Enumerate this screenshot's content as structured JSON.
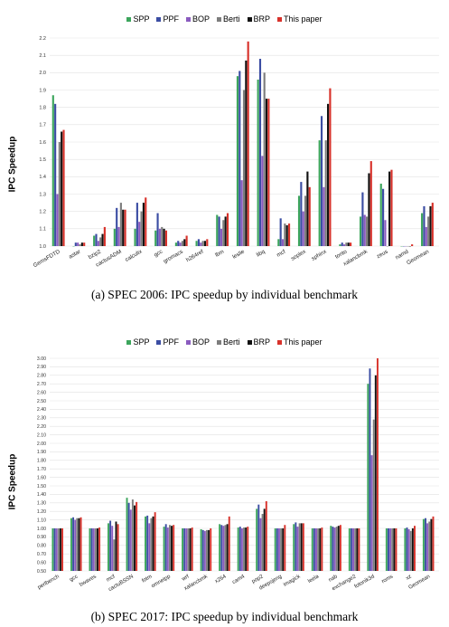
{
  "chart_data": [
    {
      "type": "bar",
      "title": "",
      "ylabel": "IPC Speedup",
      "xlabel": "",
      "ylim": [
        1.0,
        2.2
      ],
      "yticks": [
        "1.0",
        "1.1",
        "1.2",
        "1.3",
        "1.4",
        "1.5",
        "1.6",
        "1.7",
        "1.8",
        "1.9",
        "2.0",
        "2.1",
        "2.2"
      ],
      "caption": "(a) SPEC 2006: IPC speedup by individual benchmark",
      "legend_position": "top-center",
      "grid": true,
      "categories": [
        "GemsFDTD",
        "astar",
        "bzip2",
        "cactusADM",
        "calculix",
        "gcc",
        "gromacs",
        "h264ref",
        "lbm",
        "leslie",
        "libq",
        "mcf",
        "soplex",
        "sphinx",
        "tonto",
        "xalancbmk",
        "zeus",
        "namd",
        "Geomean"
      ],
      "series": [
        {
          "name": "SPP",
          "color": "#3ca55c",
          "values": [
            1.87,
            1.0,
            1.06,
            1.1,
            1.1,
            1.09,
            1.02,
            1.03,
            1.18,
            1.98,
            1.96,
            1.04,
            1.29,
            1.61,
            1.01,
            1.17,
            1.36,
            1.0,
            1.19
          ]
        },
        {
          "name": "PPF",
          "color": "#3b4da3",
          "values": [
            1.82,
            1.02,
            1.07,
            1.22,
            1.25,
            1.19,
            1.03,
            1.04,
            1.17,
            2.01,
            2.08,
            1.16,
            1.37,
            1.75,
            1.02,
            1.31,
            1.33,
            1.0,
            1.23
          ]
        },
        {
          "name": "BOP",
          "color": "#8a5bbf",
          "values": [
            1.3,
            1.02,
            1.03,
            1.11,
            1.14,
            1.1,
            1.02,
            1.02,
            1.1,
            1.38,
            1.52,
            1.04,
            1.2,
            1.34,
            1.01,
            1.18,
            1.15,
            1.0,
            1.11
          ]
        },
        {
          "name": "Berti",
          "color": "#7d7d7d",
          "values": [
            1.6,
            1.01,
            1.05,
            1.25,
            1.2,
            1.11,
            1.03,
            1.03,
            1.15,
            1.9,
            2.0,
            1.13,
            1.29,
            1.61,
            1.02,
            1.17,
            1.0,
            1.0,
            1.17
          ]
        },
        {
          "name": "BRP",
          "color": "#111111",
          "values": [
            1.66,
            1.02,
            1.07,
            1.21,
            1.25,
            1.1,
            1.04,
            1.03,
            1.17,
            2.07,
            1.85,
            1.12,
            1.43,
            1.82,
            1.02,
            1.42,
            1.43,
            1.0,
            1.23
          ]
        },
        {
          "name": "This paper",
          "color": "#d8322b",
          "values": [
            1.67,
            1.02,
            1.11,
            1.21,
            1.28,
            1.09,
            1.06,
            1.04,
            1.19,
            2.18,
            1.85,
            1.13,
            1.34,
            1.91,
            1.02,
            1.49,
            1.44,
            1.01,
            1.25
          ]
        }
      ]
    },
    {
      "type": "bar",
      "title": "",
      "ylabel": "IPC Speedup",
      "xlabel": "",
      "ylim": [
        0.5,
        3.0
      ],
      "yticks": [
        "0.50",
        "0.60",
        "0.70",
        "0.80",
        "0.90",
        "1.00",
        "1.10",
        "1.20",
        "1.30",
        "1.40",
        "1.50",
        "1.60",
        "1.70",
        "1.80",
        "1.90",
        "2.00",
        "2.10",
        "2.20",
        "2.30",
        "2.40",
        "2.50",
        "2.60",
        "2.70",
        "2.80",
        "2.90",
        "3.00"
      ],
      "caption": "(b) SPEC 2017: IPC speedup by individual benchmark",
      "legend_position": "top-center",
      "grid": true,
      "categories": [
        "perlbench",
        "gcc",
        "bwaves",
        "mcf",
        "cactuBSSN",
        "fotm",
        "omnetpp",
        "wrf",
        "xalancbmk",
        "x264",
        "cam4",
        "pop2",
        "deepsjeng",
        "imagick",
        "leela",
        "nab",
        "exchange2",
        "fotonik3d",
        "roms",
        "xz",
        "Geomean"
      ],
      "series": [
        {
          "name": "SPP",
          "color": "#3ca55c",
          "values": [
            1.0,
            1.12,
            1.0,
            1.06,
            1.36,
            1.14,
            1.02,
            1.0,
            0.99,
            1.05,
            1.01,
            1.23,
            1.0,
            1.05,
            1.0,
            1.03,
            1.0,
            2.7,
            1.0,
            1.0,
            1.11
          ]
        },
        {
          "name": "PPF",
          "color": "#3b4da3",
          "values": [
            1.0,
            1.13,
            1.0,
            1.09,
            1.3,
            1.15,
            1.05,
            1.0,
            0.98,
            1.04,
            1.02,
            1.28,
            1.0,
            1.07,
            1.0,
            1.02,
            1.0,
            2.88,
            1.0,
            1.01,
            1.12
          ]
        },
        {
          "name": "BOP",
          "color": "#8a5bbf",
          "values": [
            1.0,
            1.1,
            1.0,
            1.03,
            1.22,
            1.06,
            1.01,
            1.0,
            0.97,
            1.03,
            1.0,
            1.12,
            1.0,
            1.02,
            1.0,
            1.01,
            1.0,
            1.86,
            1.0,
            0.99,
            1.06
          ]
        },
        {
          "name": "Berti",
          "color": "#7d7d7d",
          "values": [
            1.0,
            1.12,
            1.0,
            0.87,
            1.34,
            1.12,
            1.04,
            1.0,
            0.98,
            1.04,
            1.01,
            1.17,
            1.0,
            1.06,
            1.0,
            1.02,
            1.0,
            2.28,
            1.0,
            0.97,
            1.08
          ]
        },
        {
          "name": "BRP",
          "color": "#111111",
          "values": [
            1.0,
            1.12,
            1.0,
            1.08,
            1.27,
            1.14,
            1.03,
            1.0,
            0.98,
            1.05,
            1.01,
            1.23,
            1.0,
            1.06,
            1.0,
            1.03,
            1.0,
            2.8,
            1.0,
            1.0,
            1.11
          ]
        },
        {
          "name": "This paper",
          "color": "#d8322b",
          "values": [
            1.0,
            1.13,
            1.01,
            1.05,
            1.31,
            1.19,
            1.04,
            1.01,
            1.0,
            1.14,
            1.02,
            1.32,
            1.04,
            1.06,
            1.01,
            1.04,
            1.0,
            3.0,
            1.0,
            1.03,
            1.14
          ]
        }
      ]
    }
  ]
}
